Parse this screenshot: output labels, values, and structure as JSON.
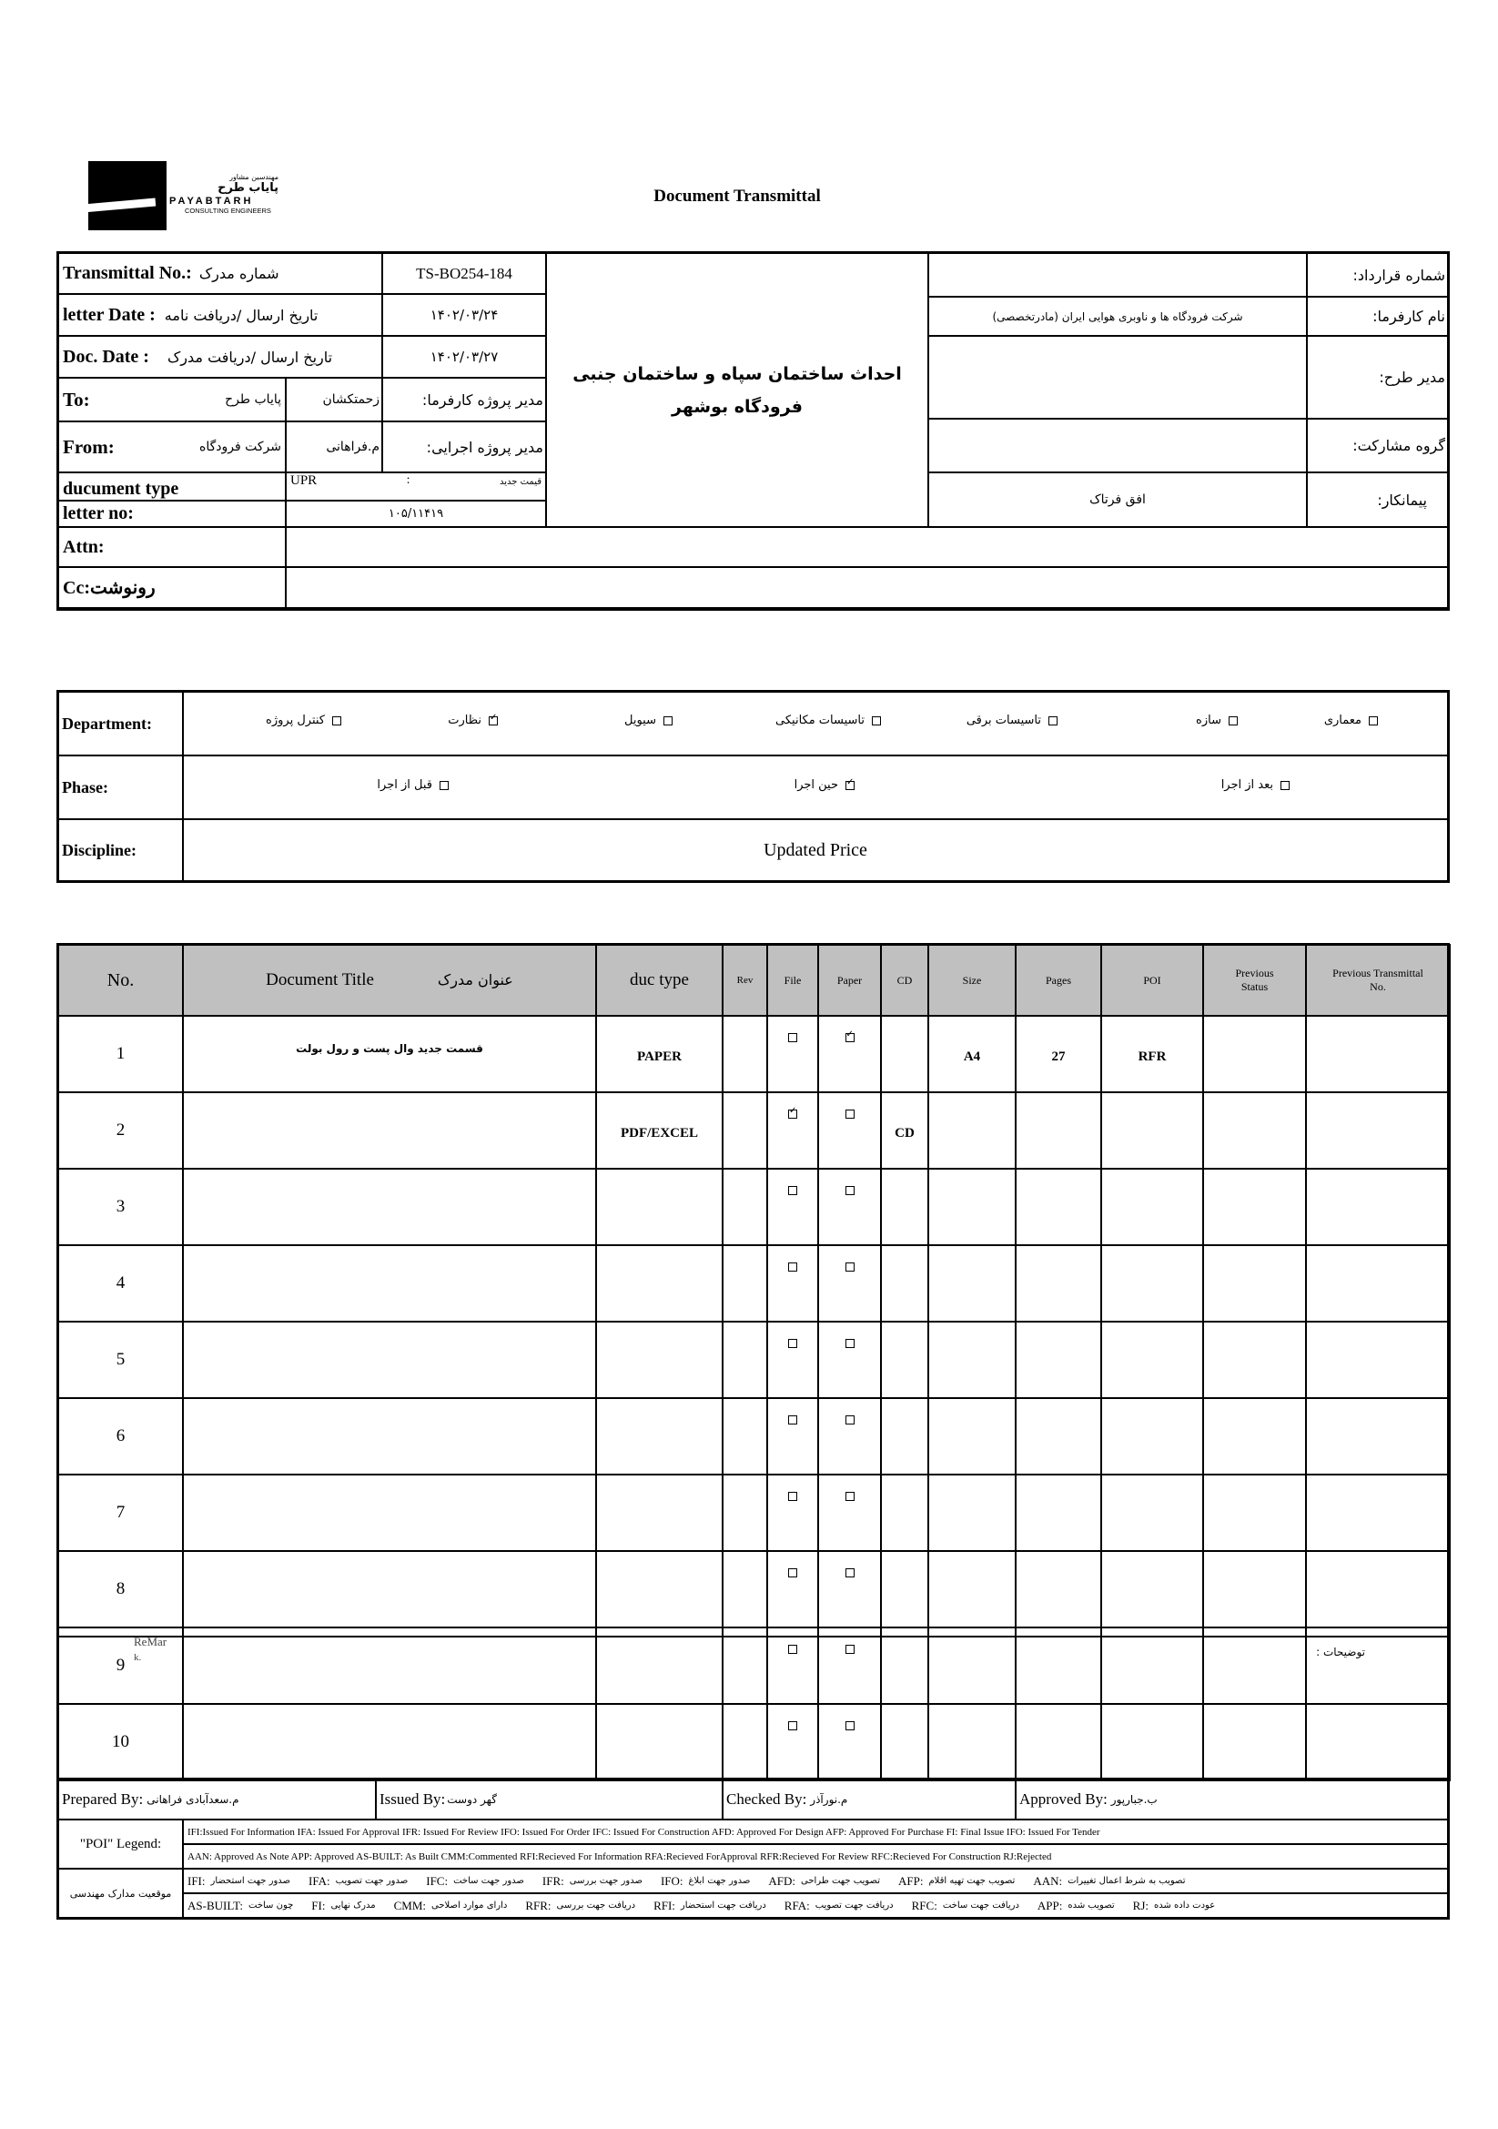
{
  "logo": {
    "company_fa_small": "مهندسین مشاور",
    "company_fa": "پایاب طرح",
    "company_en": "PAYABTARH",
    "tagline": "CONSULTING ENGINEERS"
  },
  "title": "Document Transmittal",
  "header": {
    "transmittal_no_label": "Transmittal No.:",
    "transmittal_no_label_fa": "شماره مدرک",
    "transmittal_no": "TS-BO254-184",
    "letter_date_label": "letter Date  :",
    "letter_date_label_fa": "تاریخ ارسال /دریافت نامه",
    "letter_date": "۱۴۰۲/۰۳/۲۴",
    "doc_date_label": "Doc. Date :",
    "doc_date_label_fa": "تاریخ ارسال /دریافت مدرک",
    "doc_date": "۱۴۰۲/۰۳/۲۷",
    "to_label": "To:",
    "to_value": "پایاب طرح",
    "client_pm": "زحمتکشان",
    "client_pm_label": "مدیر پروژه کارفرما:",
    "from_label": "From:",
    "from_value": "شرکت فرودگاه",
    "exec_pm": "م.فراهانی",
    "exec_pm_label": "مدیر پروژه اجرایی:",
    "doc_type_label": "ducument type",
    "doc_type_code": "UPR",
    "doc_type_sep": ":",
    "doc_type_fa": "قیمت جدید",
    "letter_no_label": "letter no:",
    "letter_no": "۱۰۵/۱۱۴۱۹",
    "attn_label": "Attn:",
    "cc_label": "Cc:رونوشت",
    "project_title_line1": "احداث ساختمان سپاه و ساختمان جنبی",
    "project_title_line2": "فرودگاه بوشهر",
    "contract_no_label": "شماره قرارداد:",
    "contract_no": "",
    "client_label": "نام کارفرما:",
    "client": "شرکت فرودگاه ها و ناوبری هوایی ایران (مادرتخصصی)",
    "plan_manager_label": "مدیر طرح:",
    "plan_manager": "",
    "partner_group_label": "گروه مشارکت:",
    "partner_group": "",
    "contractor_label": "پیمانکار:",
    "contractor": "افق فرتاک"
  },
  "classification": {
    "department_label": "Department:",
    "departments": [
      {
        "label": "معماری",
        "checked": false
      },
      {
        "label": "سازه",
        "checked": false
      },
      {
        "label": "تاسیسات برقی",
        "checked": false
      },
      {
        "label": "تاسیسات مکانیکی",
        "checked": false
      },
      {
        "label": "سیویل",
        "checked": false
      },
      {
        "label": "نظارت",
        "checked": true
      },
      {
        "label": "کنترل پروژه",
        "checked": false
      }
    ],
    "phase_label": "Phase:",
    "phases": [
      {
        "label": "بعد از اجرا",
        "checked": false
      },
      {
        "label": "حین اجرا",
        "checked": true
      },
      {
        "label": "قبل از اجرا",
        "checked": false
      }
    ],
    "discipline_label": "Discipline:",
    "discipline": "Updated Price"
  },
  "main_table": {
    "headers": {
      "no": "No.",
      "title_en": "Document Title",
      "title_fa": "عنوان مدرک",
      "type": "duc type",
      "rev": "Rev",
      "file": "File",
      "paper": "Paper",
      "cd": "CD",
      "size": "Size",
      "pages": "Pages",
      "poi": "POI",
      "prev_status": "Previous Status",
      "prev_transmittal": "Previous Transmittal No."
    },
    "rows": [
      {
        "no": "1",
        "title": "قسمت جدید وال پست و رول بولت",
        "type": "PAPER",
        "rev": "",
        "file": false,
        "paper": true,
        "cd": "",
        "size": "A4",
        "pages": "27",
        "poi": "RFR",
        "prev_status": "",
        "prev_transmittal": ""
      },
      {
        "no": "2",
        "title": "",
        "type": "PDF/EXCEL",
        "rev": "",
        "file": true,
        "paper": false,
        "cd": "CD",
        "size": "",
        "pages": "",
        "poi": "",
        "prev_status": "",
        "prev_transmittal": ""
      },
      {
        "no": "3",
        "title": "",
        "type": "",
        "rev": "",
        "file": false,
        "paper": false,
        "cd": "",
        "size": "",
        "pages": "",
        "poi": "",
        "prev_status": "",
        "prev_transmittal": ""
      },
      {
        "no": "4",
        "title": "",
        "type": "",
        "rev": "",
        "file": false,
        "paper": false,
        "cd": "",
        "size": "",
        "pages": "",
        "poi": "",
        "prev_status": "",
        "prev_transmittal": ""
      },
      {
        "no": "5",
        "title": "",
        "type": "",
        "rev": "",
        "file": false,
        "paper": false,
        "cd": "",
        "size": "",
        "pages": "",
        "poi": "",
        "prev_status": "",
        "prev_transmittal": ""
      },
      {
        "no": "6",
        "title": "",
        "type": "",
        "rev": "",
        "file": false,
        "paper": false,
        "cd": "",
        "size": "",
        "pages": "",
        "poi": "",
        "prev_status": "",
        "prev_transmittal": ""
      },
      {
        "no": "7",
        "title": "",
        "type": "",
        "rev": "",
        "file": false,
        "paper": false,
        "cd": "",
        "size": "",
        "pages": "",
        "poi": "",
        "prev_status": "",
        "prev_transmittal": ""
      },
      {
        "no": "8",
        "title": "",
        "type": "",
        "rev": "",
        "file": false,
        "paper": false,
        "cd": "",
        "size": "",
        "pages": "",
        "poi": "",
        "prev_status": "",
        "prev_transmittal": ""
      },
      {
        "no": "9",
        "title": "",
        "type": "",
        "rev": "",
        "file": false,
        "paper": false,
        "cd": "",
        "size": "",
        "pages": "",
        "poi": "",
        "prev_status": "",
        "prev_transmittal": ""
      },
      {
        "no": "10",
        "title": "",
        "type": "",
        "rev": "",
        "file": false,
        "paper": false,
        "cd": "",
        "size": "",
        "pages": "",
        "poi": "",
        "prev_status": "",
        "prev_transmittal": ""
      }
    ]
  },
  "remarks": {
    "label_en_line1": "ReMar",
    "label_en_line2": "k.",
    "label_fa": "توضیحات :"
  },
  "signatures": {
    "prepared_label": "Prepared By:",
    "prepared": "م.سعدآبادی فراهانی",
    "issued_label": "Issued By:",
    "issued": "گهر دوست",
    "checked_label": "Checked By:",
    "checked": "م.نورآذر",
    "approved_label": "Approved By:",
    "approved": "ب.جبارپور"
  },
  "legend": {
    "poi_label": "\"POI\" Legend:",
    "poi_line1": "IFI:Issued For Information  IFA: Issued For Approval  IFR: Issued For Review   IFO: Issued For Order  IFC: Issued For Construction AFD: Approved For Design AFP: Approved For Purchase  FI: Final Issue  IFO: Issued For Tender",
    "poi_line2": "AAN: Approved As Note   APP: Approved  AS-BUILT: As Built CMM:Commented  RFI:Recieved For Information   RFA:Recieved ForApproval   RFR:Recieved For Review  RFC:Recieved For Construction  RJ:Rejected",
    "fa_label": "موقعیت مدارک مهندسی",
    "fa_line1": [
      "IFI:",
      "صدور جهت استحضار",
      "IFA:",
      "صدور جهت تصویب",
      "IFC:",
      "صدور جهت ساخت",
      "IFR:",
      "صدور جهت بررسی",
      "IFO:",
      "صدور جهت ابلاغ",
      "AFD:",
      "تصویب جهت طراحی",
      "AFP:",
      "تصویب جهت تهیه اقلام",
      "AAN:",
      "تصویب به شرط اعمال تغییرات"
    ],
    "fa_line2": [
      "AS-BUILT:",
      "چون ساخت",
      "FI:",
      "مدرک نهایی",
      "CMM:",
      "دارای موارد اصلاحی",
      "RFR:",
      "دریافت جهت بررسی",
      "RFI:",
      "دریافت جهت استحضار",
      "RFA:",
      "دریافت جهت تصویب",
      "RFC:",
      "دریافت جهت ساخت",
      "APP:",
      "تصویب شده",
      "RJ:",
      "عودت داده شده"
    ]
  }
}
